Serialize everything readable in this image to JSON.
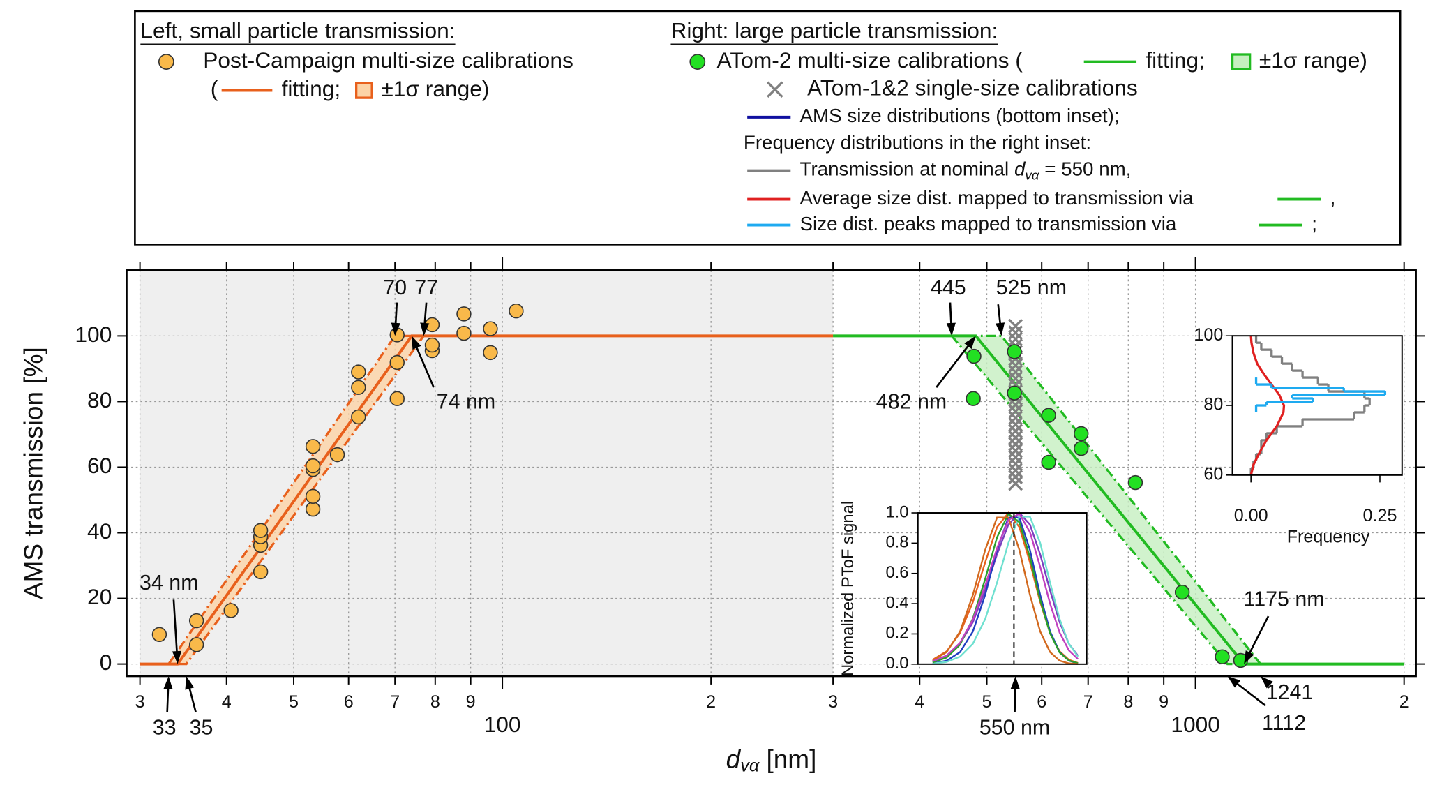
{
  "chart_data": [
    {
      "type": "scatter",
      "xlabel": [
        "d",
        "vα",
        " [nm]"
      ],
      "ylabel": "AMS transmission [%]",
      "xscale": "log",
      "xlim": [
        28.7,
        2080
      ],
      "ylim": [
        -3.7,
        120
      ],
      "xticks": [
        {
          "value": 30,
          "label": "3"
        },
        {
          "value": 40,
          "label": "4"
        },
        {
          "value": 50,
          "label": "5"
        },
        {
          "value": 60,
          "label": "6"
        },
        {
          "value": 70,
          "label": "7"
        },
        {
          "value": 80,
          "label": "8"
        },
        {
          "value": 90,
          "label": "9"
        },
        100,
        {
          "value": 200,
          "label": "2"
        },
        {
          "value": 300,
          "label": "3"
        },
        {
          "value": 400,
          "label": "4"
        },
        {
          "value": 500,
          "label": "5"
        },
        {
          "value": 600,
          "label": "6"
        },
        {
          "value": 700,
          "label": "7"
        },
        {
          "value": 800,
          "label": "8"
        },
        {
          "value": 900,
          "label": "9"
        },
        1000,
        {
          "value": 2000,
          "label": "2"
        }
      ],
      "yticks": [
        0,
        20,
        40,
        60,
        80,
        100
      ],
      "grid": true,
      "shade": {
        "x": [
          30,
          300
        ],
        "color": "#efefef"
      },
      "series": [
        {
          "type": "band",
          "color": "#e8601c",
          "fill": "#fcd3a6",
          "x": [
            33,
            70,
            77,
            35
          ],
          "values": [
            0,
            100,
            100,
            0
          ]
        },
        {
          "type": "line",
          "color": "#e8601c",
          "x": [
            30,
            34,
            74,
            300
          ],
          "values": [
            0,
            0,
            100,
            100
          ]
        },
        {
          "type": "band",
          "color": "#22bb22",
          "fill": "#c6efc0",
          "x": [
            445,
            1112,
            1241,
            525
          ],
          "values": [
            100,
            0,
            0,
            100
          ]
        },
        {
          "type": "line",
          "color": "#22bb22",
          "x": [
            300,
            482,
            1175,
            2000
          ],
          "values": [
            100,
            100,
            0,
            0
          ]
        },
        {
          "type": "scatter",
          "marker": "x",
          "color": "#808080",
          "x": [
            550,
            550,
            550,
            550,
            550,
            550,
            550,
            550,
            550,
            550,
            550,
            550,
            550,
            550,
            550,
            550,
            550,
            550,
            550,
            550,
            550,
            550,
            550,
            550,
            550
          ],
          "values": [
            55,
            57,
            59,
            61,
            63,
            65,
            67,
            69,
            71,
            73,
            75,
            77,
            79,
            81,
            83,
            85,
            87,
            89,
            91,
            93,
            95,
            97,
            99,
            101,
            103
          ]
        },
        {
          "type": "scatter",
          "marker": "circle",
          "color": "#f9b94a",
          "x": [
            32,
            36.2,
            36.2,
            40.6,
            44.8,
            44.8,
            44.8,
            44.8,
            53.3,
            53.3,
            53.3,
            53.3,
            53.3,
            57.8,
            62,
            62,
            62,
            70.5,
            70.5,
            70.5,
            79.2,
            79.2,
            79.2,
            88,
            88,
            96.1,
            96.1,
            104.7
          ],
          "values": [
            9,
            13.2,
            5.9,
            16.3,
            28.1,
            36.2,
            38.8,
            40.7,
            47.2,
            51.1,
            59.3,
            60.4,
            66.3,
            63.8,
            75.3,
            84.3,
            89,
            80.9,
            91.9,
            100.3,
            95.5,
            97.2,
            103.4,
            100.8,
            106.7,
            94.9,
            102.2,
            107.6
          ]
        },
        {
          "type": "scatter",
          "marker": "circle",
          "color": "#22e022",
          "x": [
            479,
            478,
            548,
            548,
            614,
            614,
            684,
            684,
            819,
            957,
            1093,
            1162
          ],
          "values": [
            93.8,
            80.9,
            95.2,
            82.6,
            75.8,
            61.5,
            70.2,
            65.7,
            55.3,
            21.9,
            2.2,
            1.1
          ]
        }
      ],
      "annotations": [
        {
          "text": "34 nm",
          "x": 34,
          "y": 0
        },
        {
          "text": "33",
          "x": 33
        },
        {
          "text": "35",
          "x": 35
        },
        {
          "text": "70",
          "x": 70,
          "y": 100
        },
        {
          "text": "77",
          "x": 77,
          "y": 100
        },
        {
          "text": "74 nm",
          "x": 74,
          "y": 100
        },
        {
          "text": "445",
          "x": 445,
          "y": 100
        },
        {
          "text": "525 nm",
          "x": 525,
          "y": 100
        },
        {
          "text": "482 nm",
          "x": 482,
          "y": 100
        },
        {
          "text": "1175 nm",
          "x": 1175,
          "y": 0
        },
        {
          "text": "1112",
          "x": 1112
        },
        {
          "text": "1241",
          "x": 1241
        },
        {
          "text": "550 nm",
          "x": 550
        }
      ],
      "legend": [
        {
          "text": "Left, small particle transmission:",
          "underline": true
        },
        {
          "text": "Post-Campaign multi-size calibrations",
          "symbol": "circle",
          "color": "#f9b94a"
        },
        {
          "text": "("
        },
        {
          "text": "fitting;",
          "symbol": "line",
          "color": "#e8601c"
        },
        {
          "text": "±1σ range)",
          "symbol": "box",
          "color": "#e8601c",
          "fill": "#fcd3a6"
        },
        {
          "text": "Right: large particle transmission:",
          "underline": true
        },
        {
          "text": "ATom-2 multi-size calibrations (",
          "symbol": "circle",
          "color": "#22e022"
        },
        {
          "text": "fitting;",
          "symbol": "line",
          "color": "#22bb22"
        },
        {
          "text": "±1σ range)",
          "symbol": "box",
          "color": "#22bb22",
          "fill": "#c6efc0"
        },
        {
          "text": "ATom-1&2 single-size calibrations",
          "symbol": "x",
          "color": "#808080"
        },
        {
          "text": "AMS size distributions (bottom inset);",
          "symbol": "line",
          "color": "#1010a0"
        },
        {
          "text": "Frequency distributions in the right inset:"
        },
        {
          "text": [
            "Transmission at nominal ",
            "d",
            "vα",
            " = 550 nm,"
          ],
          "symbol": "line",
          "color": "#808080"
        },
        {
          "text": "Average size dist. mapped to transmission via",
          "symbol": "line",
          "color": "#e02020"
        },
        {
          "text": ",",
          "symbol": "line",
          "color": "#22bb22"
        },
        {
          "text": "Size dist. peaks mapped to transmission via",
          "symbol": "line",
          "color": "#1eaaf0"
        },
        {
          "text": ";",
          "symbol": "line",
          "color": "#22bb22"
        }
      ]
    },
    {
      "type": "line",
      "ylabel": "Normalized PToF signal",
      "xscale": "log",
      "xlim": [
        400,
        700
      ],
      "ylim": [
        0,
        1
      ],
      "yticks": [
        {
          "value": 0,
          "label": "0.0"
        },
        0.2,
        0.4,
        0.6,
        0.8,
        {
          "value": 1,
          "label": "1.0"
        }
      ],
      "vline": 550,
      "x": [
        420,
        440,
        460,
        480,
        500,
        520,
        540,
        560,
        580,
        600,
        620,
        640,
        660,
        680
      ],
      "series": [
        {
          "color": "#e8601c",
          "values": [
            0.029,
            0.085,
            0.206,
            0.411,
            0.673,
            0.906,
            1.0,
            0.906,
            0.673,
            0.411,
            0.206,
            0.085,
            0.029,
            0.008
          ]
        },
        {
          "color": "#7b3fbf",
          "values": [
            0.02,
            0.056,
            0.135,
            0.278,
            0.487,
            0.726,
            0.923,
            1.0,
            0.923,
            0.726,
            0.487,
            0.278,
            0.135,
            0.056
          ]
        },
        {
          "color": "#1f3fbf",
          "values": [
            0.005,
            0.023,
            0.08,
            0.216,
            0.458,
            0.755,
            0.969,
            0.969,
            0.755,
            0.458,
            0.216,
            0.08,
            0.023,
            0.005
          ]
        },
        {
          "color": "#6fe0d0",
          "values": [
            0.004,
            0.015,
            0.05,
            0.135,
            0.298,
            0.539,
            0.801,
            0.975,
            0.975,
            0.801,
            0.539,
            0.298,
            0.135,
            0.05
          ]
        },
        {
          "color": "#2ca02c",
          "values": [
            0.012,
            0.044,
            0.129,
            0.302,
            0.563,
            0.838,
            0.993,
            0.938,
            0.707,
            0.424,
            0.203,
            0.077,
            0.024,
            0.006
          ]
        },
        {
          "color": "#d2691e",
          "values": [
            0.023,
            0.08,
            0.216,
            0.458,
            0.755,
            0.969,
            0.969,
            0.755,
            0.458,
            0.216,
            0.08,
            0.023,
            0.005,
            0.001
          ]
        },
        {
          "color": "#c040c0",
          "values": [
            0.019,
            0.057,
            0.141,
            0.295,
            0.519,
            0.767,
            0.953,
            0.995,
            0.873,
            0.644,
            0.4,
            0.208,
            0.091,
            0.034
          ]
        }
      ]
    },
    {
      "type": "histogram",
      "xlabel": "Frequency",
      "xlim": [
        -0.036,
        0.293
      ],
      "ylim": [
        60,
        100
      ],
      "xticks": [
        {
          "value": 0,
          "label": "0.00"
        },
        0.25
      ],
      "yticks": [
        60,
        80,
        100
      ],
      "series": [
        {
          "type": "histogram",
          "color": "#808080",
          "bins": [
            60,
            62,
            64,
            66,
            68,
            70,
            72,
            74,
            76,
            78,
            80,
            82,
            84,
            86,
            88,
            90,
            92,
            94,
            96,
            98,
            100
          ],
          "values": [
            0,
            0.005,
            0.01,
            0.02,
            0.02,
            0.03,
            0.05,
            0.1,
            0.2,
            0.22,
            0.23,
            0.22,
            0.15,
            0.13,
            0.1,
            0.08,
            0.06,
            0.04,
            0.02,
            0.01
          ]
        },
        {
          "type": "line",
          "color": "#e02020",
          "x": [
            0,
            0.005,
            0.015,
            0.03,
            0.05,
            0.063,
            0.064,
            0.055,
            0.04,
            0.025,
            0.012,
            0.005,
            0.001,
            0
          ],
          "values": [
            60,
            63,
            66,
            70,
            74,
            78,
            80,
            83,
            86,
            89,
            92,
            95,
            98,
            100
          ]
        },
        {
          "type": "histogram",
          "color": "#1eaaf0",
          "bins": [
            78,
            80,
            81,
            82,
            83,
            84,
            85,
            86,
            88
          ],
          "values": [
            0.01,
            0.03,
            0.12,
            0.08,
            0.26,
            0.18,
            0.04,
            0.01
          ]
        }
      ]
    }
  ]
}
